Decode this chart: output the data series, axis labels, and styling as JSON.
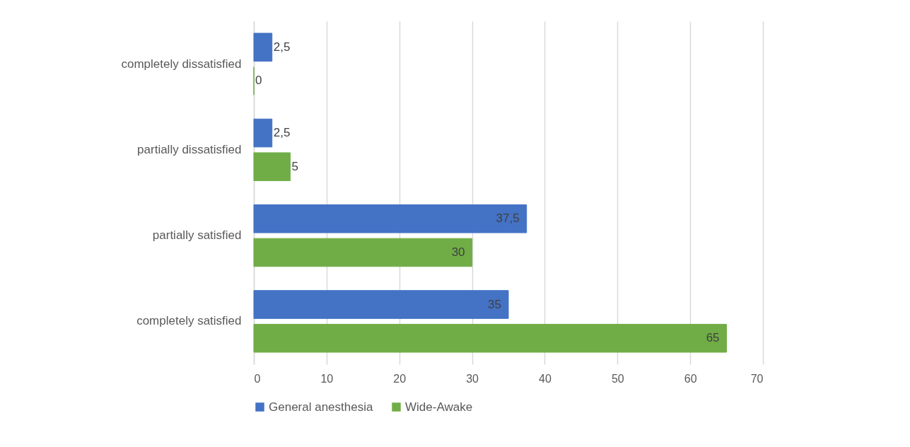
{
  "chart_data": {
    "type": "bar",
    "orientation": "horizontal",
    "categories": [
      "completely dissatisfied",
      "partially dissatisfied",
      "partially satisfied",
      "completely satisfied"
    ],
    "series": [
      {
        "name": "General anesthesia",
        "color": "#4472c4",
        "values": [
          2.5,
          2.5,
          37.5,
          35
        ],
        "value_labels": [
          "2,5",
          "2,5",
          "37,5",
          "35"
        ]
      },
      {
        "name": "Wide-Awake",
        "color": "#70ad47",
        "values": [
          0,
          5,
          30,
          65
        ],
        "value_labels": [
          "0",
          "5",
          "30",
          "65"
        ]
      }
    ],
    "xlim": [
      0,
      70
    ],
    "xticks": [
      0,
      10,
      20,
      30,
      40,
      50,
      60,
      70
    ],
    "grid": "x",
    "legend": "bottom"
  }
}
